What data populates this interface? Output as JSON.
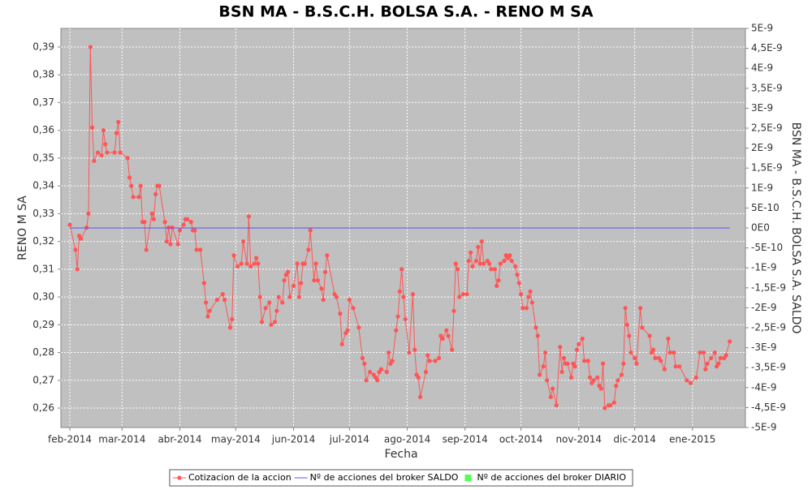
{
  "chart_data": {
    "type": "line",
    "title": "BSN MA - B.S.C.H. BOLSA S.A. - RENO M SA",
    "xlabel": "Fecha",
    "ylabel": "RENO M SA",
    "y2label": "BSN MA - B.S.C.H. BOLSA S.A. SALDO",
    "grid": true,
    "background": "#c0c0c0",
    "xlim": [
      -4.8,
      362.4
    ],
    "xticks": [
      {
        "value": 0,
        "label": "feb-2014"
      },
      {
        "value": 28,
        "label": "mar-2014"
      },
      {
        "value": 59,
        "label": "abr-2014"
      },
      {
        "value": 89,
        "label": "may-2014"
      },
      {
        "value": 120,
        "label": "jun-2014"
      },
      {
        "value": 150,
        "label": "jul-2014"
      },
      {
        "value": 181,
        "label": "ago-2014"
      },
      {
        "value": 212,
        "label": "sep-2014"
      },
      {
        "value": 242,
        "label": "oct-2014"
      },
      {
        "value": 273,
        "label": "nov-2014"
      },
      {
        "value": 303,
        "label": "dic-2014"
      },
      {
        "value": 334,
        "label": "ene-2015"
      }
    ],
    "ylim": [
      0.253,
      0.3967
    ],
    "yticks": [
      {
        "value": 0.26,
        "label": "0,26"
      },
      {
        "value": 0.27,
        "label": "0,27"
      },
      {
        "value": 0.28,
        "label": "0,28"
      },
      {
        "value": 0.29,
        "label": "0,29"
      },
      {
        "value": 0.3,
        "label": "0,30"
      },
      {
        "value": 0.31,
        "label": "0,31"
      },
      {
        "value": 0.32,
        "label": "0,32"
      },
      {
        "value": 0.33,
        "label": "0,33"
      },
      {
        "value": 0.34,
        "label": "0,34"
      },
      {
        "value": 0.35,
        "label": "0,35"
      },
      {
        "value": 0.36,
        "label": "0,36"
      },
      {
        "value": 0.37,
        "label": "0,37"
      },
      {
        "value": 0.38,
        "label": "0,38"
      },
      {
        "value": 0.39,
        "label": "0,39"
      }
    ],
    "y2lim": [
      -5e-09,
      5e-09
    ],
    "y2ticks": [
      {
        "value": 5e-09,
        "label": "5E-9"
      },
      {
        "value": 4.5e-09,
        "label": "4,5E-9"
      },
      {
        "value": 4e-09,
        "label": "4E-9"
      },
      {
        "value": 3.5e-09,
        "label": "3,5E-9"
      },
      {
        "value": 3e-09,
        "label": "3E-9"
      },
      {
        "value": 2.5e-09,
        "label": "2,5E-9"
      },
      {
        "value": 2e-09,
        "label": "2E-9"
      },
      {
        "value": 1.5e-09,
        "label": "1,5E-9"
      },
      {
        "value": 1e-09,
        "label": "1E-9"
      },
      {
        "value": 5e-10,
        "label": "5E-10"
      },
      {
        "value": 0,
        "label": "0E0"
      },
      {
        "value": -5e-10,
        "label": "-5E-10"
      },
      {
        "value": -1e-09,
        "label": "-1E-9"
      },
      {
        "value": -1.5e-09,
        "label": "-1,5E-9"
      },
      {
        "value": -2e-09,
        "label": "-2E-9"
      },
      {
        "value": -2.5e-09,
        "label": "-2,5E-9"
      },
      {
        "value": -3e-09,
        "label": "-3E-9"
      },
      {
        "value": -3.5e-09,
        "label": "-3,5E-9"
      },
      {
        "value": -4e-09,
        "label": "-4E-9"
      },
      {
        "value": -4.5e-09,
        "label": "-4,5E-9"
      },
      {
        "value": -5e-09,
        "label": "-5E-9"
      }
    ],
    "series": [
      {
        "name": "Cotizacion de la accion",
        "color": "#ff5555",
        "markers": true,
        "x": [
          0,
          3,
          4,
          5,
          6,
          9,
          10,
          11,
          12,
          13,
          15,
          17,
          18,
          19,
          20,
          24,
          25,
          26,
          27,
          31,
          32,
          33,
          34,
          37,
          38,
          39,
          40,
          41,
          44,
          45,
          46,
          47,
          48,
          51,
          52,
          53,
          54,
          55,
          58,
          59,
          61,
          62,
          63,
          65,
          66,
          67,
          68,
          70,
          72,
          73,
          74,
          75,
          79,
          82,
          83,
          86,
          87,
          88,
          90,
          92,
          93,
          95,
          96,
          97,
          99,
          100,
          101,
          102,
          103,
          105,
          107,
          108,
          110,
          111,
          112,
          114,
          115,
          116,
          117,
          118,
          120,
          122,
          123,
          124,
          125,
          126,
          128,
          129,
          131,
          132,
          133,
          135,
          136,
          137,
          138,
          142,
          143,
          145,
          146,
          148,
          149,
          150,
          152,
          155,
          157,
          158,
          159,
          161,
          163,
          164,
          165,
          166,
          167,
          170,
          171,
          172,
          173,
          175,
          176,
          177,
          178,
          179,
          180,
          182,
          184,
          185,
          186,
          187,
          188,
          191,
          192,
          193,
          196,
          198,
          199,
          200,
          202,
          203,
          205,
          206,
          207,
          208,
          209,
          211,
          213,
          214,
          215,
          216,
          218,
          219,
          220,
          221,
          222,
          224,
          225,
          226,
          228,
          229,
          230,
          231,
          233,
          234,
          235,
          236,
          237,
          239,
          240,
          241,
          242,
          243,
          245,
          246,
          247,
          248,
          250,
          251,
          252,
          254,
          255,
          256,
          258,
          259,
          261,
          263,
          264,
          265,
          266,
          267,
          269,
          270,
          271,
          272,
          273,
          275,
          276,
          278,
          279,
          280,
          281,
          283,
          284,
          285,
          286,
          287,
          289,
          290,
          292,
          293,
          294,
          296,
          297,
          298,
          299,
          300,
          301,
          303,
          304,
          306,
          307,
          311,
          312,
          313,
          314,
          316,
          317,
          319,
          321,
          322,
          324,
          325,
          327,
          331,
          333,
          336,
          338,
          340,
          341,
          342,
          344,
          346,
          347,
          348,
          349,
          351,
          352,
          354
        ],
        "values": [
          0.326,
          0.317,
          0.31,
          0.322,
          0.321,
          0.325,
          0.33,
          0.39,
          0.361,
          0.349,
          0.352,
          0.351,
          0.36,
          0.355,
          0.352,
          0.352,
          0.359,
          0.363,
          0.352,
          0.35,
          0.343,
          0.34,
          0.336,
          0.336,
          0.34,
          0.327,
          0.327,
          0.317,
          0.33,
          0.328,
          0.337,
          0.34,
          0.34,
          0.327,
          0.32,
          0.325,
          0.319,
          0.325,
          0.319,
          0.324,
          0.326,
          0.328,
          0.328,
          0.327,
          0.324,
          0.324,
          0.317,
          0.317,
          0.305,
          0.298,
          0.293,
          0.295,
          0.299,
          0.301,
          0.299,
          0.289,
          0.292,
          0.315,
          0.311,
          0.312,
          0.32,
          0.312,
          0.329,
          0.311,
          0.312,
          0.314,
          0.312,
          0.3,
          0.291,
          0.296,
          0.298,
          0.29,
          0.291,
          0.295,
          0.3,
          0.298,
          0.306,
          0.308,
          0.309,
          0.3,
          0.304,
          0.312,
          0.3,
          0.305,
          0.312,
          0.312,
          0.317,
          0.324,
          0.306,
          0.312,
          0.306,
          0.303,
          0.299,
          0.309,
          0.315,
          0.301,
          0.3,
          0.294,
          0.283,
          0.287,
          0.288,
          0.299,
          0.296,
          0.289,
          0.278,
          0.276,
          0.27,
          0.273,
          0.272,
          0.271,
          0.27,
          0.273,
          0.274,
          0.273,
          0.28,
          0.276,
          0.277,
          0.288,
          0.293,
          0.302,
          0.31,
          0.3,
          0.292,
          0.28,
          0.301,
          0.281,
          0.272,
          0.271,
          0.264,
          0.273,
          0.279,
          0.277,
          0.277,
          0.278,
          0.286,
          0.285,
          0.288,
          0.286,
          0.281,
          0.295,
          0.312,
          0.31,
          0.3,
          0.301,
          0.301,
          0.313,
          0.316,
          0.311,
          0.313,
          0.318,
          0.312,
          0.32,
          0.312,
          0.313,
          0.312,
          0.31,
          0.31,
          0.304,
          0.306,
          0.312,
          0.313,
          0.315,
          0.314,
          0.315,
          0.313,
          0.311,
          0.308,
          0.305,
          0.301,
          0.296,
          0.296,
          0.3,
          0.302,
          0.298,
          0.289,
          0.286,
          0.272,
          0.275,
          0.28,
          0.27,
          0.264,
          0.267,
          0.261,
          0.282,
          0.273,
          0.278,
          0.276,
          0.276,
          0.271,
          0.276,
          0.275,
          0.281,
          0.283,
          0.285,
          0.277,
          0.277,
          0.271,
          0.269,
          0.27,
          0.271,
          0.268,
          0.267,
          0.276,
          0.26,
          0.261,
          0.261,
          0.262,
          0.268,
          0.27,
          0.272,
          0.276,
          0.296,
          0.29,
          0.286,
          0.28,
          0.278,
          0.276,
          0.296,
          0.289,
          0.286,
          0.28,
          0.281,
          0.278,
          0.278,
          0.277,
          0.274,
          0.285,
          0.28,
          0.28,
          0.275,
          0.275,
          0.27,
          0.269,
          0.271,
          0.28,
          0.28,
          0.274,
          0.276,
          0.278,
          0.28,
          0.275,
          0.276,
          0.278,
          0.278,
          0.279,
          0.284
        ]
      },
      {
        "name": "Nº de acciones del broker SALDO",
        "color": "#5555ff",
        "axis": "y2",
        "markers": false,
        "x": [
          0,
          354
        ],
        "values": [
          0,
          0
        ]
      },
      {
        "name": "Nº de acciones del broker DIARIO",
        "color": "#55ff55",
        "axis": "y2",
        "markers": false,
        "legend_shape": "square",
        "x": [],
        "values": []
      }
    ]
  }
}
